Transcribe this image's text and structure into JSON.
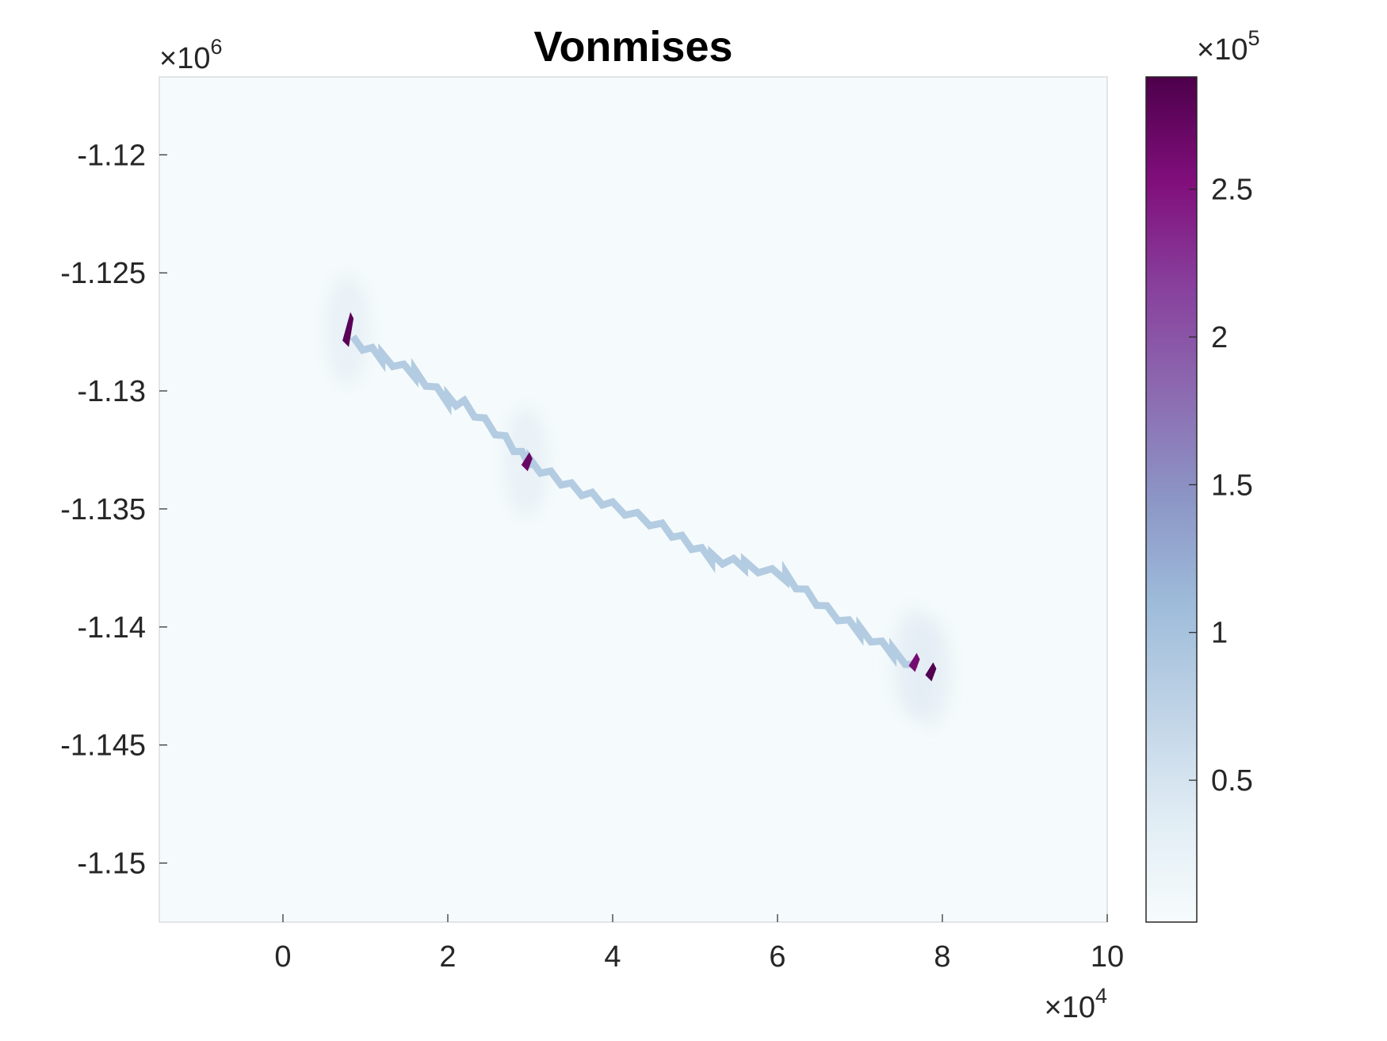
{
  "chart_data": {
    "type": "heatmap",
    "title": "Vonmises",
    "xlabel": "",
    "ylabel": "",
    "x_exponent_label": {
      "base": "×10",
      "power": "4"
    },
    "y_exponent_label": {
      "base": "×10",
      "power": "6"
    },
    "colorbar_exponent_label": {
      "base": "×10",
      "power": "5"
    },
    "xlim": [
      -1.5,
      10
    ],
    "ylim": [
      -1.1525,
      -1.1167
    ],
    "x_ticks": [
      0,
      2,
      4,
      6,
      8,
      10
    ],
    "x_tick_labels": [
      "0",
      "2",
      "4",
      "6",
      "8",
      "10"
    ],
    "y_ticks": [
      -1.12,
      -1.125,
      -1.13,
      -1.135,
      -1.14,
      -1.145,
      -1.15
    ],
    "y_tick_labels": [
      "-1.12",
      "-1.125",
      "-1.13",
      "-1.135",
      "-1.14",
      "-1.145",
      "-1.15"
    ],
    "colorbar": {
      "range": [
        0.02,
        2.88
      ],
      "ticks": [
        0.5,
        1,
        1.5,
        2,
        2.5
      ],
      "tick_labels": [
        "0.5",
        "1",
        "1.5",
        "2",
        "2.5"
      ],
      "colormap": [
        "#f7fcfd",
        "#e0ecf4",
        "#bfd3e6",
        "#9ebcda",
        "#8c96c6",
        "#8c6bb1",
        "#88419d",
        "#810f7c",
        "#4d004b"
      ]
    },
    "background_value": 0.05,
    "fracture_path": {
      "value": 0.85,
      "points": [
        [
          0.85,
          -1.1278
        ],
        [
          1.2,
          -1.1285
        ],
        [
          1.6,
          -1.1292
        ],
        [
          2.0,
          -1.1303
        ],
        [
          2.2,
          -1.1305
        ],
        [
          2.7,
          -1.132
        ],
        [
          3.0,
          -1.133
        ],
        [
          3.5,
          -1.134
        ],
        [
          4.0,
          -1.1348
        ],
        [
          4.6,
          -1.1357
        ],
        [
          5.2,
          -1.137
        ],
        [
          5.6,
          -1.1373
        ],
        [
          6.1,
          -1.1378
        ],
        [
          6.6,
          -1.1392
        ],
        [
          7.0,
          -1.1401
        ],
        [
          7.4,
          -1.141
        ],
        [
          7.7,
          -1.1417
        ]
      ]
    },
    "hotspots": [
      {
        "x": 0.78,
        "y": -1.1274,
        "value": 2.8
      },
      {
        "x": 2.95,
        "y": -1.133,
        "value": 2.7
      },
      {
        "x": 7.65,
        "y": -1.1415,
        "value": 2.6
      },
      {
        "x": 7.85,
        "y": -1.1419,
        "value": 2.85
      }
    ],
    "grid": false
  }
}
